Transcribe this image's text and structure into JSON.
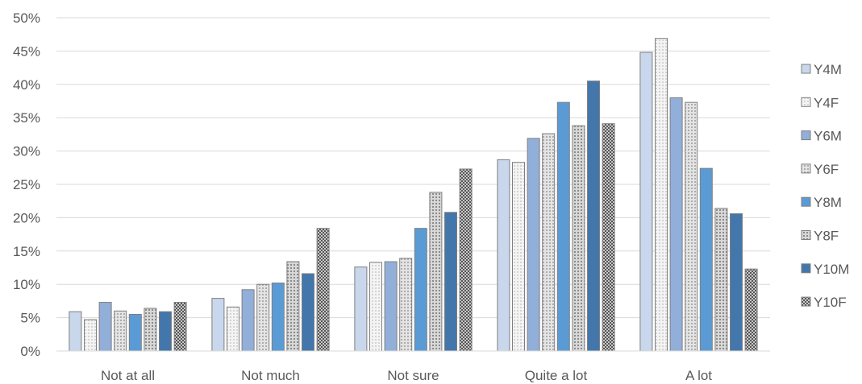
{
  "chart_data": {
    "type": "bar",
    "categories": [
      "Not at all",
      "Not much",
      "Not sure",
      "Quite a lot",
      "A lot"
    ],
    "ylim": [
      0,
      50
    ],
    "y_ticks": [
      0,
      5,
      10,
      15,
      20,
      25,
      30,
      35,
      40,
      45,
      50
    ],
    "y_tick_suffix": "%",
    "grid": true,
    "legend_position": "right",
    "series": [
      {
        "name": "Y4M",
        "values": [
          5.9,
          7.9,
          12.6,
          28.7,
          44.8
        ],
        "fill": "#c9d7ec",
        "pattern": "solid"
      },
      {
        "name": "Y4F",
        "values": [
          4.7,
          6.6,
          13.3,
          28.3,
          46.9
        ],
        "fill": "#efefef",
        "pattern": "dots"
      },
      {
        "name": "Y6M",
        "values": [
          7.3,
          9.2,
          13.4,
          31.9,
          38.0
        ],
        "fill": "#92afd9",
        "pattern": "solid"
      },
      {
        "name": "Y6F",
        "values": [
          6.0,
          10.0,
          13.9,
          32.6,
          37.3
        ],
        "fill": "#dadada",
        "pattern": "dots"
      },
      {
        "name": "Y8M",
        "values": [
          5.5,
          10.2,
          18.4,
          37.3,
          27.4
        ],
        "fill": "#5b9bd5",
        "pattern": "solid"
      },
      {
        "name": "Y8F",
        "values": [
          6.4,
          13.4,
          23.8,
          33.8,
          21.4
        ],
        "fill": "#b4b4b4",
        "pattern": "grid"
      },
      {
        "name": "Y10M",
        "values": [
          5.9,
          11.6,
          20.8,
          40.5,
          20.6
        ],
        "fill": "#4377ac",
        "pattern": "solid"
      },
      {
        "name": "Y10F",
        "values": [
          7.3,
          18.4,
          27.3,
          34.1,
          12.3
        ],
        "fill": "#8c8c8c",
        "pattern": "checker"
      }
    ]
  }
}
